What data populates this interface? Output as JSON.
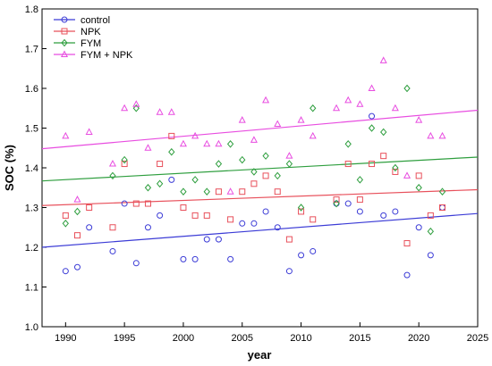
{
  "chart_data": {
    "type": "scatter",
    "title": "",
    "xlabel": "year",
    "ylabel": "SOC (%)",
    "xlim": [
      1988,
      2025
    ],
    "ylim": [
      1.0,
      1.8
    ],
    "xticks": [
      1990,
      1995,
      2000,
      2005,
      2010,
      2015,
      2020,
      2025
    ],
    "yticks": [
      1.0,
      1.1,
      1.2,
      1.3,
      1.4,
      1.5,
      1.6,
      1.7,
      1.8
    ],
    "xtick_labels": [
      "1990",
      "1995",
      "2000",
      "2005",
      "2010",
      "2015",
      "2020",
      "2025"
    ],
    "ytick_labels": [
      "1.0",
      "1.1",
      "1.2",
      "1.3",
      "1.4",
      "1.5",
      "1.6",
      "1.7",
      "1.8"
    ],
    "grid": false,
    "legend_position": "top-left",
    "series": [
      {
        "name": "control",
        "marker": "circle",
        "color": "#3b3bd6",
        "trend": [
          [
            1988,
            1.2
          ],
          [
            2025,
            1.285
          ]
        ],
        "points": [
          [
            1990,
            1.14
          ],
          [
            1991,
            1.15
          ],
          [
            1992,
            1.25
          ],
          [
            1994,
            1.19
          ],
          [
            1995,
            1.31
          ],
          [
            1996,
            1.16
          ],
          [
            1997,
            1.25
          ],
          [
            1998,
            1.28
          ],
          [
            1999,
            1.37
          ],
          [
            2000,
            1.17
          ],
          [
            2001,
            1.17
          ],
          [
            2002,
            1.22
          ],
          [
            2003,
            1.22
          ],
          [
            2004,
            1.17
          ],
          [
            2005,
            1.26
          ],
          [
            2006,
            1.26
          ],
          [
            2007,
            1.29
          ],
          [
            2008,
            1.25
          ],
          [
            2009,
            1.14
          ],
          [
            2010,
            1.18
          ],
          [
            2011,
            1.19
          ],
          [
            2013,
            1.31
          ],
          [
            2014,
            1.31
          ],
          [
            2015,
            1.29
          ],
          [
            2016,
            1.53
          ],
          [
            2017,
            1.28
          ],
          [
            2018,
            1.29
          ],
          [
            2019,
            1.13
          ],
          [
            2020,
            1.25
          ],
          [
            2021,
            1.18
          ],
          [
            2022,
            1.3
          ]
        ]
      },
      {
        "name": "NPK",
        "marker": "square",
        "color": "#e8505b",
        "trend": [
          [
            1988,
            1.305
          ],
          [
            2025,
            1.345
          ]
        ],
        "points": [
          [
            1990,
            1.28
          ],
          [
            1991,
            1.23
          ],
          [
            1992,
            1.3
          ],
          [
            1994,
            1.25
          ],
          [
            1995,
            1.41
          ],
          [
            1996,
            1.31
          ],
          [
            1997,
            1.31
          ],
          [
            1998,
            1.41
          ],
          [
            1999,
            1.48
          ],
          [
            2000,
            1.3
          ],
          [
            2001,
            1.28
          ],
          [
            2002,
            1.28
          ],
          [
            2003,
            1.34
          ],
          [
            2004,
            1.27
          ],
          [
            2005,
            1.34
          ],
          [
            2006,
            1.36
          ],
          [
            2007,
            1.38
          ],
          [
            2008,
            1.34
          ],
          [
            2009,
            1.22
          ],
          [
            2010,
            1.29
          ],
          [
            2011,
            1.27
          ],
          [
            2013,
            1.32
          ],
          [
            2014,
            1.41
          ],
          [
            2015,
            1.32
          ],
          [
            2016,
            1.41
          ],
          [
            2017,
            1.43
          ],
          [
            2018,
            1.39
          ],
          [
            2019,
            1.21
          ],
          [
            2020,
            1.38
          ],
          [
            2021,
            1.28
          ],
          [
            2022,
            1.3
          ]
        ]
      },
      {
        "name": "FYM",
        "marker": "diamond",
        "color": "#2e9e3e",
        "trend": [
          [
            1988,
            1.367
          ],
          [
            2025,
            1.427
          ]
        ],
        "points": [
          [
            1990,
            1.26
          ],
          [
            1991,
            1.29
          ],
          [
            1994,
            1.38
          ],
          [
            1995,
            1.42
          ],
          [
            1996,
            1.55
          ],
          [
            1997,
            1.35
          ],
          [
            1998,
            1.36
          ],
          [
            1999,
            1.44
          ],
          [
            2000,
            1.34
          ],
          [
            2001,
            1.37
          ],
          [
            2002,
            1.34
          ],
          [
            2003,
            1.41
          ],
          [
            2004,
            1.46
          ],
          [
            2005,
            1.42
          ],
          [
            2006,
            1.39
          ],
          [
            2007,
            1.43
          ],
          [
            2008,
            1.38
          ],
          [
            2009,
            1.41
          ],
          [
            2010,
            1.3
          ],
          [
            2011,
            1.55
          ],
          [
            2013,
            1.31
          ],
          [
            2014,
            1.46
          ],
          [
            2015,
            1.37
          ],
          [
            2016,
            1.5
          ],
          [
            2017,
            1.49
          ],
          [
            2018,
            1.4
          ],
          [
            2019,
            1.6
          ],
          [
            2020,
            1.35
          ],
          [
            2021,
            1.24
          ],
          [
            2022,
            1.34
          ]
        ]
      },
      {
        "name": "FYM + NPK",
        "marker": "triangle",
        "color": "#e84ce0",
        "trend": [
          [
            1988,
            1.448
          ],
          [
            2025,
            1.545
          ]
        ],
        "points": [
          [
            1990,
            1.48
          ],
          [
            1991,
            1.32
          ],
          [
            1992,
            1.49
          ],
          [
            1994,
            1.41
          ],
          [
            1995,
            1.55
          ],
          [
            1996,
            1.56
          ],
          [
            1997,
            1.45
          ],
          [
            1998,
            1.54
          ],
          [
            1999,
            1.54
          ],
          [
            2000,
            1.46
          ],
          [
            2001,
            1.48
          ],
          [
            2002,
            1.46
          ],
          [
            2003,
            1.46
          ],
          [
            2004,
            1.34
          ],
          [
            2005,
            1.52
          ],
          [
            2006,
            1.47
          ],
          [
            2007,
            1.57
          ],
          [
            2008,
            1.51
          ],
          [
            2009,
            1.43
          ],
          [
            2010,
            1.52
          ],
          [
            2011,
            1.48
          ],
          [
            2013,
            1.55
          ],
          [
            2014,
            1.57
          ],
          [
            2015,
            1.56
          ],
          [
            2016,
            1.6
          ],
          [
            2017,
            1.67
          ],
          [
            2018,
            1.55
          ],
          [
            2019,
            1.38
          ],
          [
            2020,
            1.52
          ],
          [
            2021,
            1.48
          ],
          [
            2022,
            1.48
          ]
        ]
      }
    ]
  }
}
